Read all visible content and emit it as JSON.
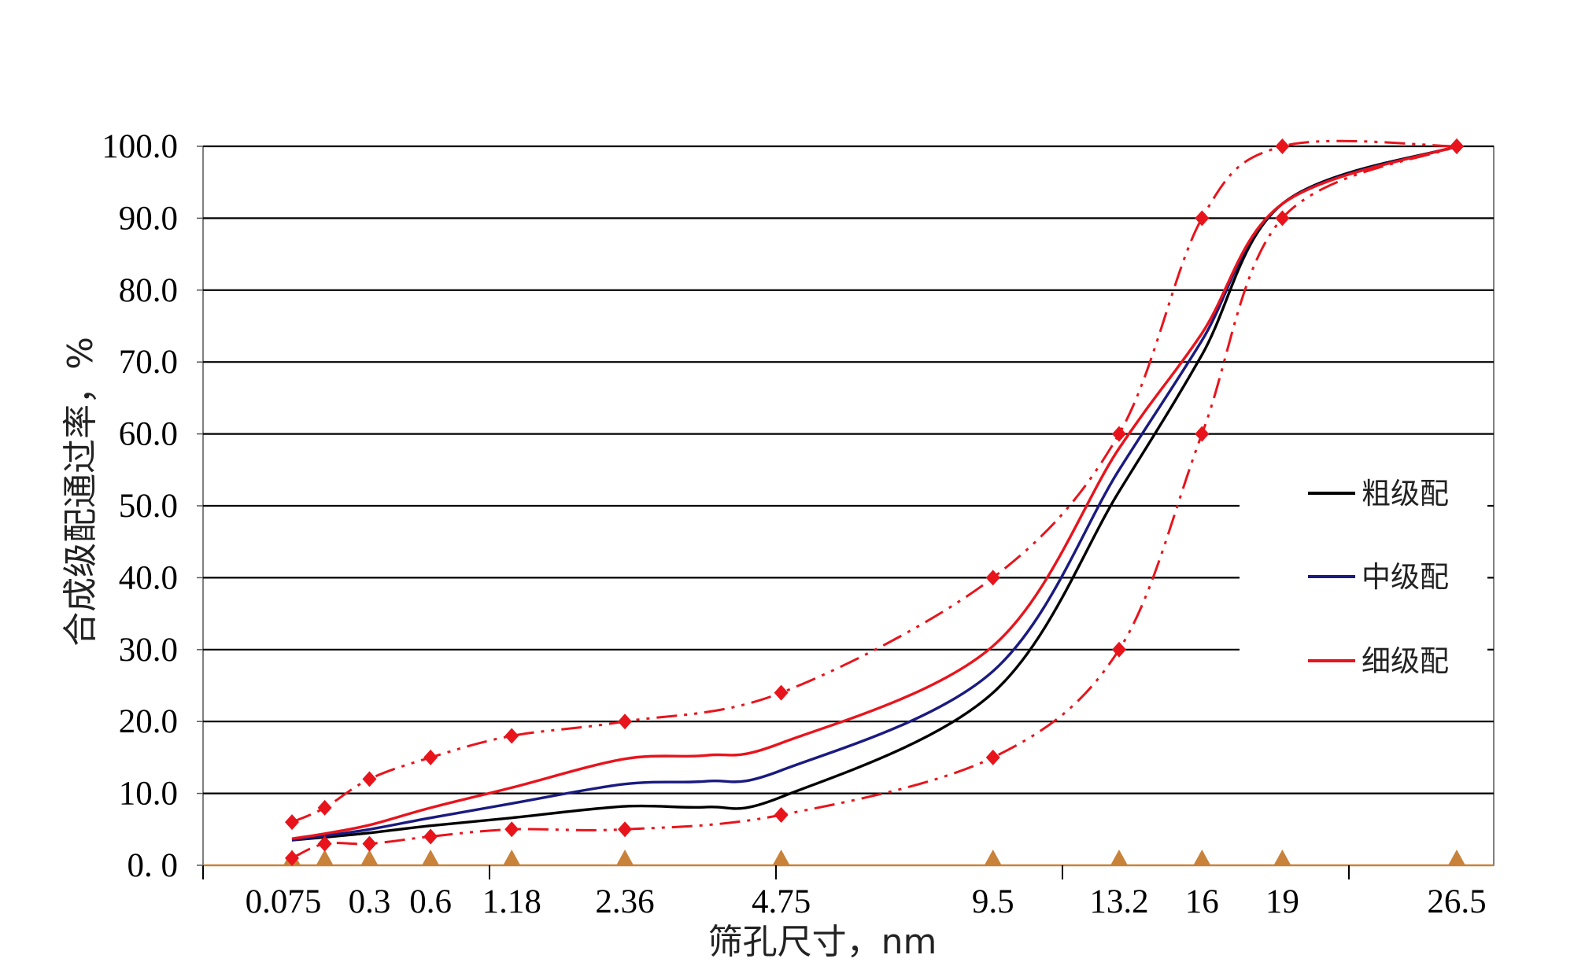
{
  "chart_data": {
    "type": "line",
    "xlabel": "筛孔尺寸，nm",
    "ylabel": "合成级配通过率，%",
    "ylim": [
      0,
      100
    ],
    "y_ticks": [
      "0. 0",
      "10.0",
      "20.0",
      "30.0",
      "40.0",
      "50.0",
      "60.0",
      "70.0",
      "80.0",
      "90.0",
      "100.0"
    ],
    "y_tick_values": [
      0,
      10,
      20,
      30,
      40,
      50,
      60,
      70,
      80,
      90,
      100
    ],
    "x_ticks": [
      "0.075",
      "0.3",
      "0.6",
      "1.18",
      "2.36",
      "4.75",
      "9.5",
      "13.2",
      "16",
      "19",
      "26.5"
    ],
    "x_tick_values": [
      0.075,
      0.3,
      0.6,
      1.18,
      2.36,
      4.75,
      9.5,
      13.2,
      16,
      19,
      26.5
    ],
    "x_scale": "power-0.45",
    "grid": "horizontal",
    "legend_position": "right",
    "sieve_sizes": [
      0.075,
      0.15,
      0.3,
      0.6,
      1.18,
      2.36,
      4.75,
      9.5,
      13.2,
      16,
      19,
      26.5
    ],
    "series": [
      {
        "name": "粗级配",
        "color": "#000000",
        "style": "solid",
        "x": [
          0.075,
          0.15,
          0.3,
          0.6,
          1.18,
          2.36,
          3.5,
          4.75,
          9.5,
          13.2,
          16,
          19,
          26.5
        ],
        "values": [
          3.5,
          3.9,
          4.5,
          5.5,
          6.6,
          8.2,
          8.1,
          9.5,
          24,
          52,
          71,
          92,
          100
        ]
      },
      {
        "name": "中级配",
        "color": "#1a1a80",
        "style": "solid",
        "x": [
          0.075,
          0.15,
          0.3,
          0.6,
          1.18,
          2.36,
          3.5,
          4.75,
          9.5,
          13.2,
          16,
          19,
          26.5
        ],
        "values": [
          3.5,
          4.1,
          5.0,
          6.6,
          8.6,
          11.3,
          11.7,
          13.2,
          27,
          55,
          73,
          92,
          100
        ]
      },
      {
        "name": "细级配",
        "color": "#e8141c",
        "style": "solid",
        "x": [
          0.075,
          0.15,
          0.3,
          0.6,
          1.18,
          2.36,
          3.5,
          4.75,
          9.5,
          13.2,
          16,
          19,
          26.5
        ],
        "values": [
          3.7,
          4.4,
          5.6,
          8.0,
          10.8,
          14.8,
          15.3,
          17.0,
          30.5,
          58,
          74,
          92,
          100
        ]
      }
    ],
    "limits": [
      {
        "role": "upper",
        "color": "#e8141c",
        "style": "dash-dot-dot",
        "x": [
          0.075,
          0.15,
          0.3,
          0.6,
          1.18,
          2.36,
          4.75,
          9.5,
          13.2,
          16,
          19,
          26.5
        ],
        "values": [
          6,
          8,
          12,
          15,
          18,
          20,
          24,
          40,
          60,
          90,
          100,
          100
        ]
      },
      {
        "role": "lower",
        "color": "#e8141c",
        "style": "dash-dot-dot",
        "x": [
          0.075,
          0.15,
          0.3,
          0.6,
          1.18,
          2.36,
          4.75,
          9.5,
          13.2,
          16,
          19,
          26.5
        ],
        "values": [
          1,
          3,
          3,
          4,
          5,
          5,
          7,
          15,
          30,
          60,
          90,
          100
        ]
      }
    ],
    "axis_marker_color": "#c8823a"
  }
}
